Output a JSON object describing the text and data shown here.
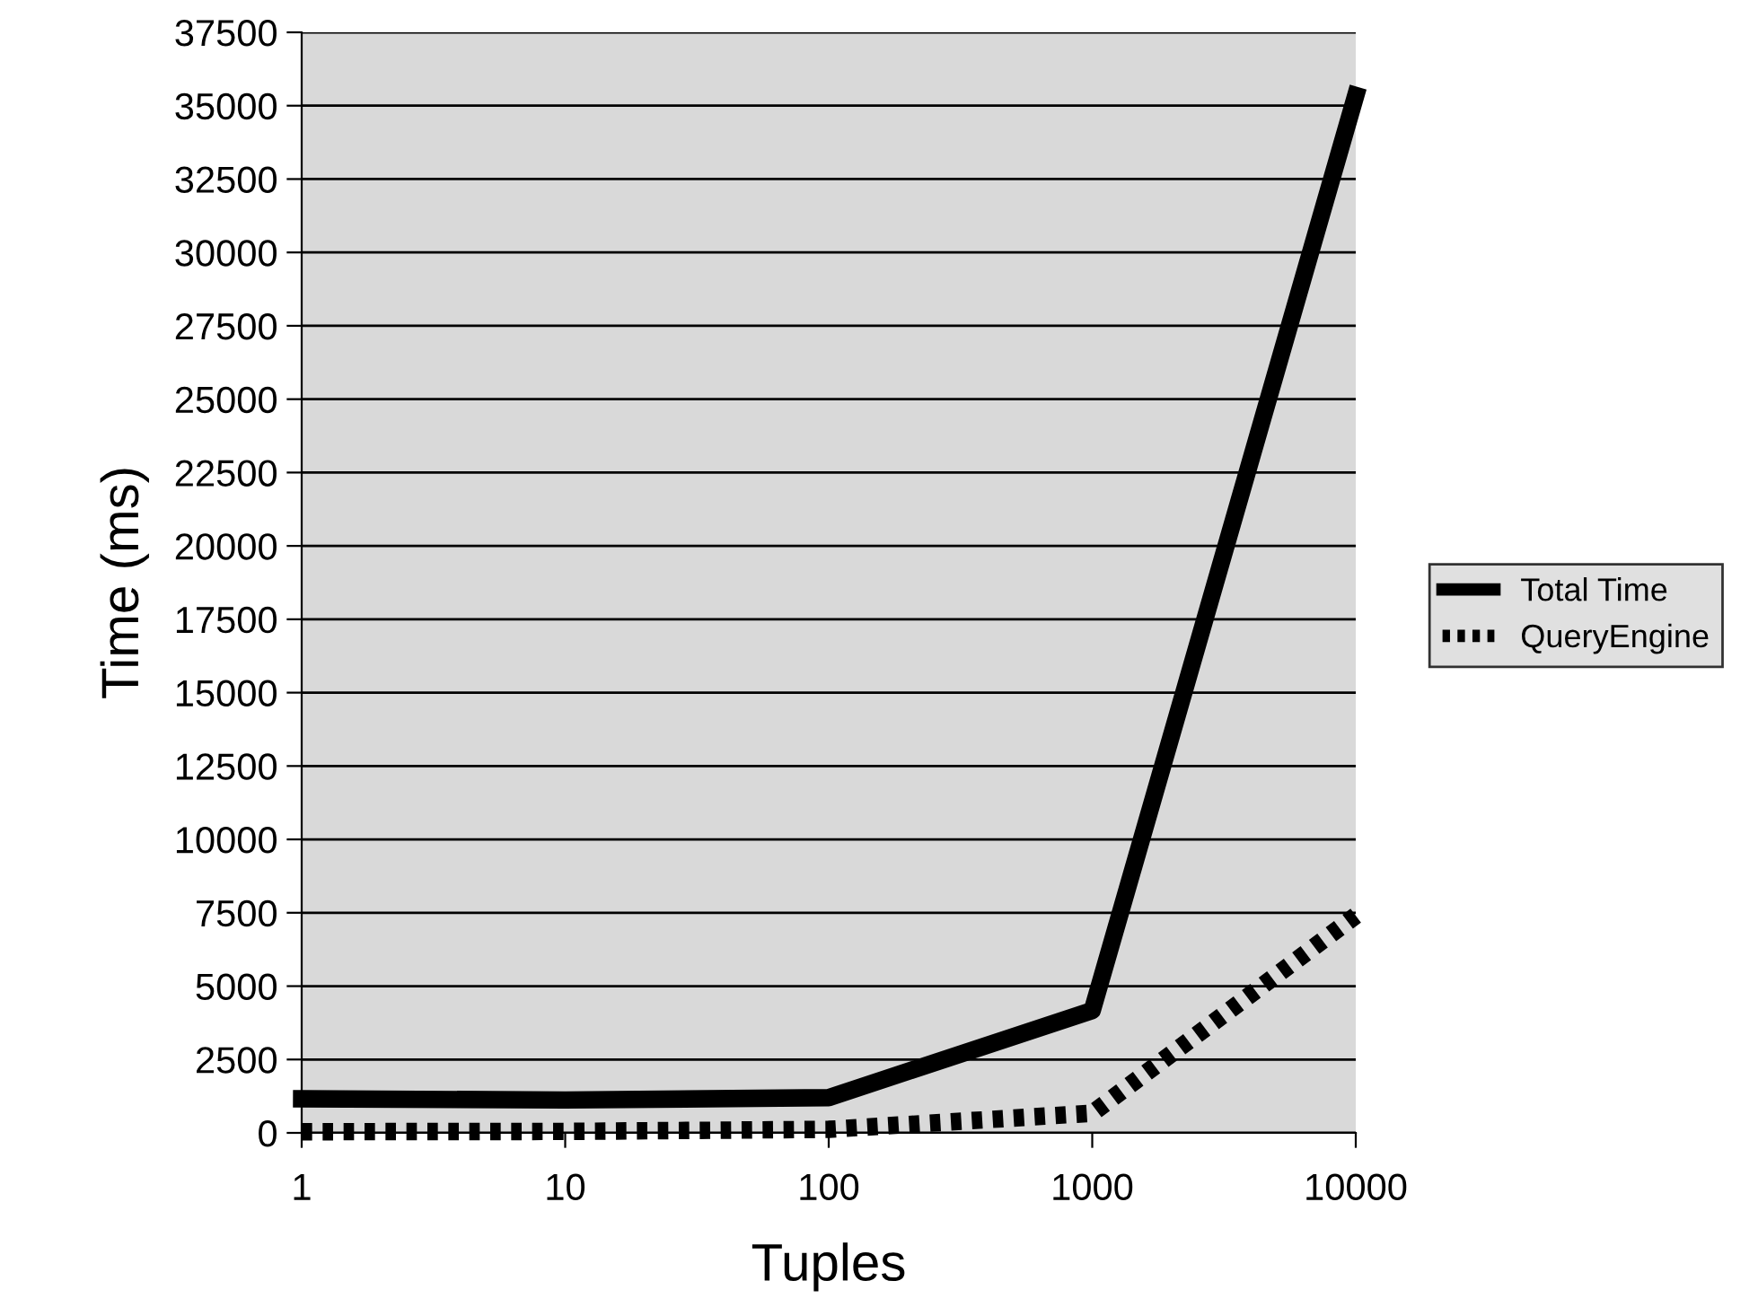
{
  "chart_data": {
    "type": "line",
    "xlabel": "Tuples",
    "ylabel": "Time (ms)",
    "categories": [
      "1",
      "10",
      "100",
      "1000",
      "10000"
    ],
    "series": [
      {
        "name": "Total Time",
        "color": "#000000",
        "line_style": "solid",
        "values": [
          1160,
          1120,
          1200,
          4170,
          35350
        ]
      },
      {
        "name": "QueryEngine",
        "color": "#000000",
        "line_style": "dotted",
        "values": [
          40,
          50,
          120,
          670,
          7400
        ]
      }
    ],
    "ylim": [
      0,
      37500
    ],
    "yticks": [
      0,
      2500,
      5000,
      7500,
      10000,
      12500,
      15000,
      17500,
      20000,
      22500,
      25000,
      27500,
      30000,
      32500,
      35000,
      37500
    ],
    "grid": "y",
    "legend": "right",
    "marker": "none"
  }
}
